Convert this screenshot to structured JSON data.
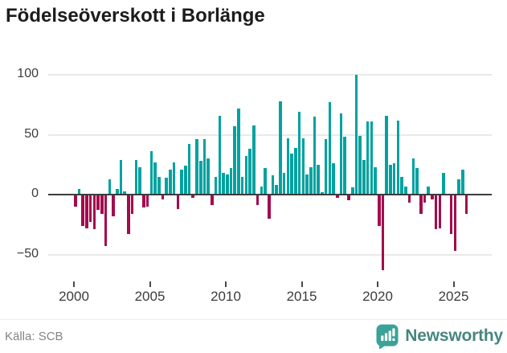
{
  "title": "Födelseöverskott i Borlänge",
  "footer": {
    "source": "Källa: SCB",
    "brand": "Newsworthy"
  },
  "colors": {
    "positive": "#00a2a0",
    "negative": "#a30b4e",
    "gridline": "#e9e9e9",
    "zero_line": "#3d3d3d",
    "axis_text": "#3c3c3c",
    "title_text": "#1c1c1c",
    "source_text": "#848484",
    "brand_teal": "#3aa296",
    "brand_text": "#46867f"
  },
  "chart_data": {
    "type": "bar",
    "title": "Födelseöverskott i Borlänge",
    "xlabel": "",
    "ylabel": "",
    "x_start_year": 2000,
    "points_per_year": 4,
    "x_tick_years": [
      2000,
      2005,
      2010,
      2015,
      2020,
      2025
    ],
    "x_tick_labels": [
      "2000",
      "2005",
      "2010",
      "2015",
      "2020",
      "2025"
    ],
    "y_tick_values": [
      100,
      50,
      0,
      -50
    ],
    "y_tick_labels": [
      "100",
      "50",
      "0",
      "−50"
    ],
    "ylim": [
      -70,
      110
    ],
    "grid": "horizontal",
    "legend": "none",
    "values": [
      -10,
      5,
      -26,
      -28,
      -23,
      -29,
      -13,
      -16,
      -43,
      13,
      -18,
      5,
      29,
      3,
      -33,
      -16,
      29,
      23,
      -11,
      -10,
      36,
      27,
      15,
      -4,
      14,
      21,
      27,
      -12,
      21,
      24,
      42,
      -3,
      46,
      28,
      46,
      30,
      -9,
      15,
      66,
      18,
      17,
      22,
      57,
      72,
      15,
      32,
      38,
      58,
      -9,
      7,
      22,
      -20,
      16,
      8,
      78,
      18,
      47,
      34,
      39,
      69,
      47,
      17,
      23,
      65,
      25,
      2,
      46,
      77,
      26,
      -3,
      68,
      48,
      -5,
      6,
      100,
      49,
      29,
      61,
      61,
      23,
      -26,
      -63,
      66,
      25,
      26,
      62,
      15,
      7,
      -7,
      30,
      22,
      -16,
      -7,
      7,
      -4,
      -29,
      -28,
      18,
      -1,
      -33,
      -47,
      13,
      21,
      -16
    ]
  }
}
